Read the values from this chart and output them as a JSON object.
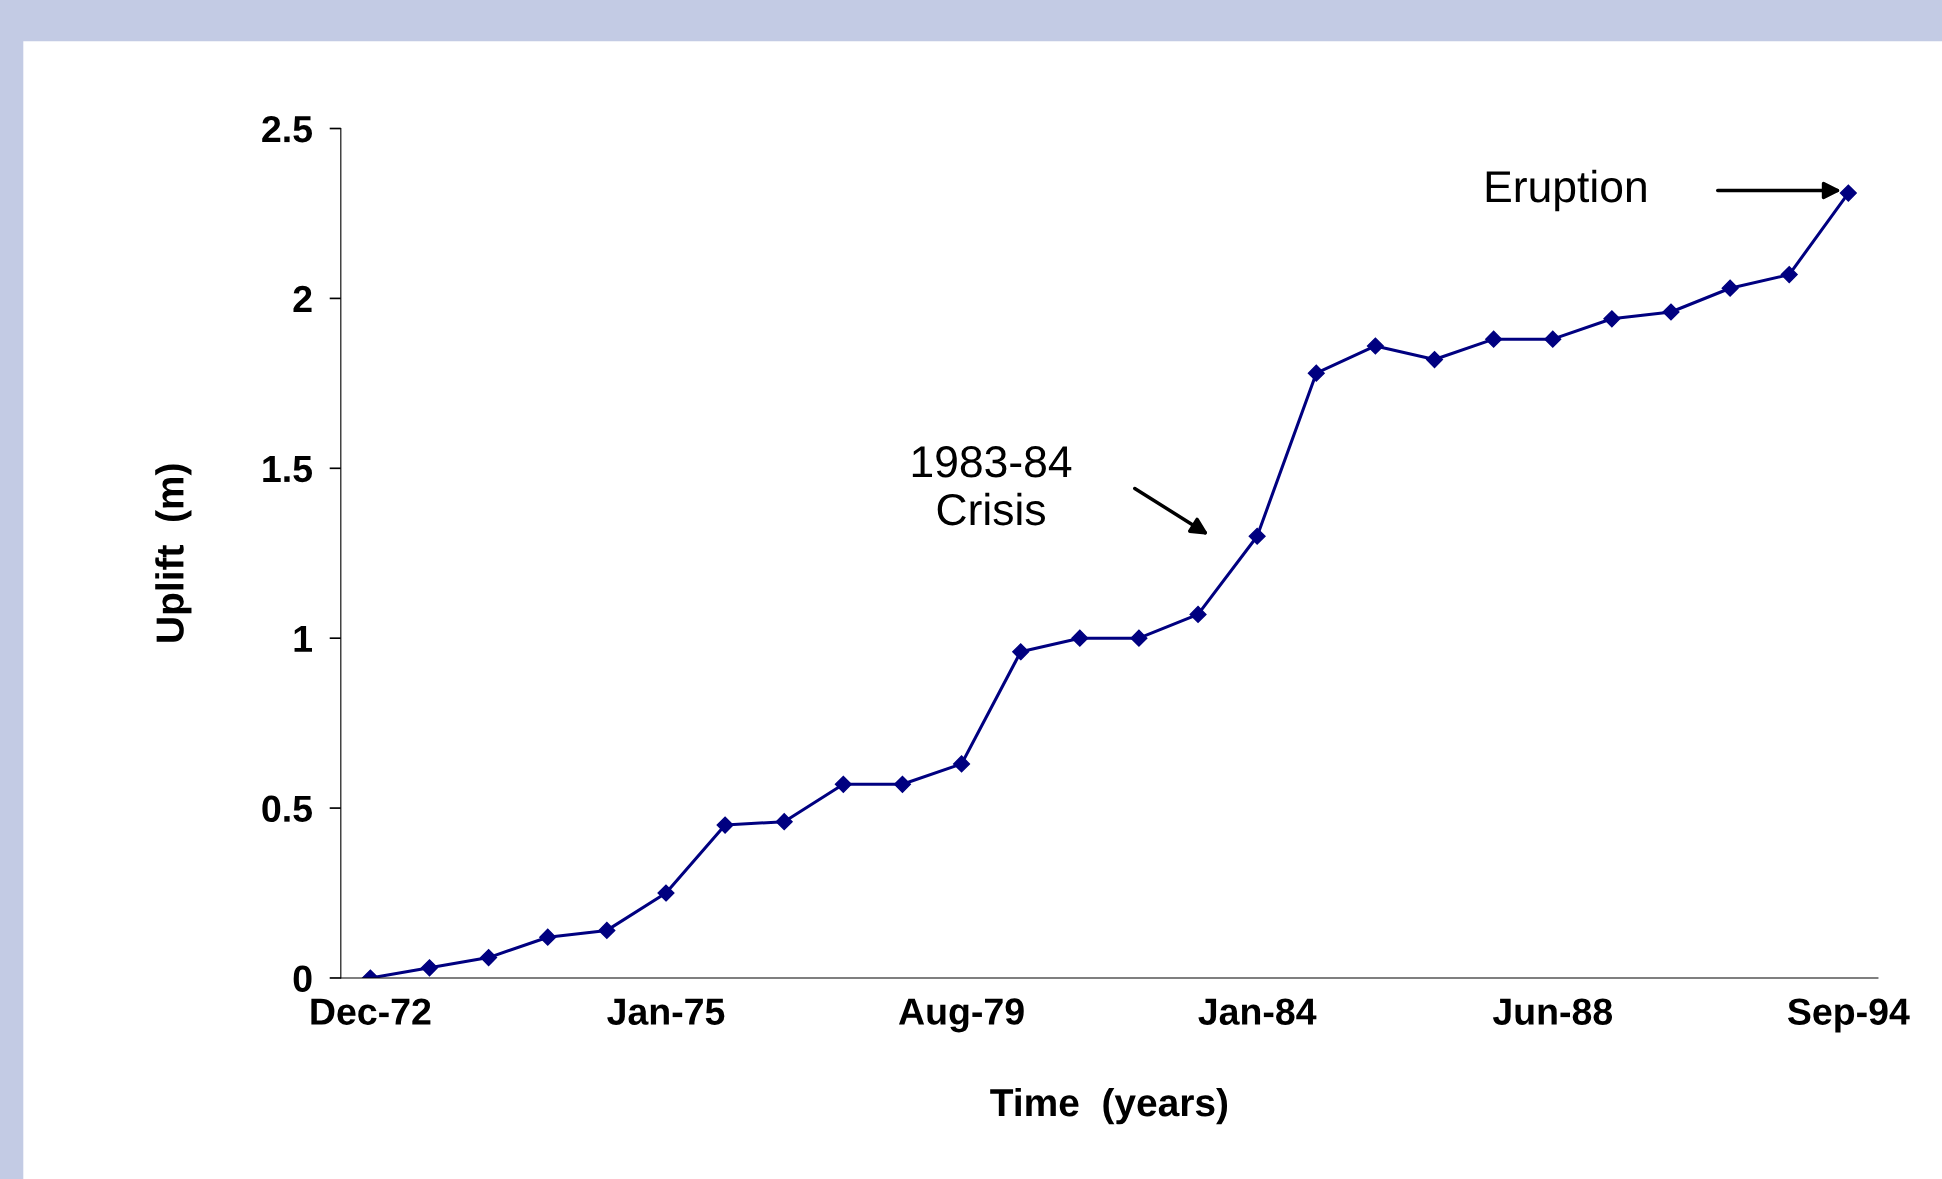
{
  "chart_data": {
    "type": "line",
    "xlabel": "Time  (years)",
    "ylabel": "Uplift  (m)",
    "categories": [
      "Dec-72",
      null,
      null,
      null,
      null,
      "Jan-75",
      null,
      null,
      null,
      null,
      "Aug-79",
      null,
      null,
      null,
      null,
      "Jan-84",
      null,
      null,
      null,
      null,
      "Jun-88",
      null,
      null,
      null,
      null,
      "Sep-94"
    ],
    "series": [
      {
        "color": "#000080",
        "values": [
          0,
          0.03,
          0.06,
          0.12,
          0.14,
          0.25,
          0.45,
          0.46,
          0.57,
          0.57,
          0.63,
          0.96,
          1.0,
          1.0,
          1.07,
          1.3,
          1.78,
          1.86,
          1.82,
          1.88,
          1.88,
          1.94,
          1.96,
          2.03,
          2.07,
          2.31
        ]
      }
    ],
    "ylim": [
      0,
      2.5
    ],
    "yticks": [
      0,
      0.5,
      1,
      1.5,
      2,
      2.5
    ],
    "marker": "diamond",
    "line_style": "solid",
    "grid": false,
    "legend": false,
    "annotations": [
      "1983-84\nCrisis",
      "Eruption"
    ]
  }
}
